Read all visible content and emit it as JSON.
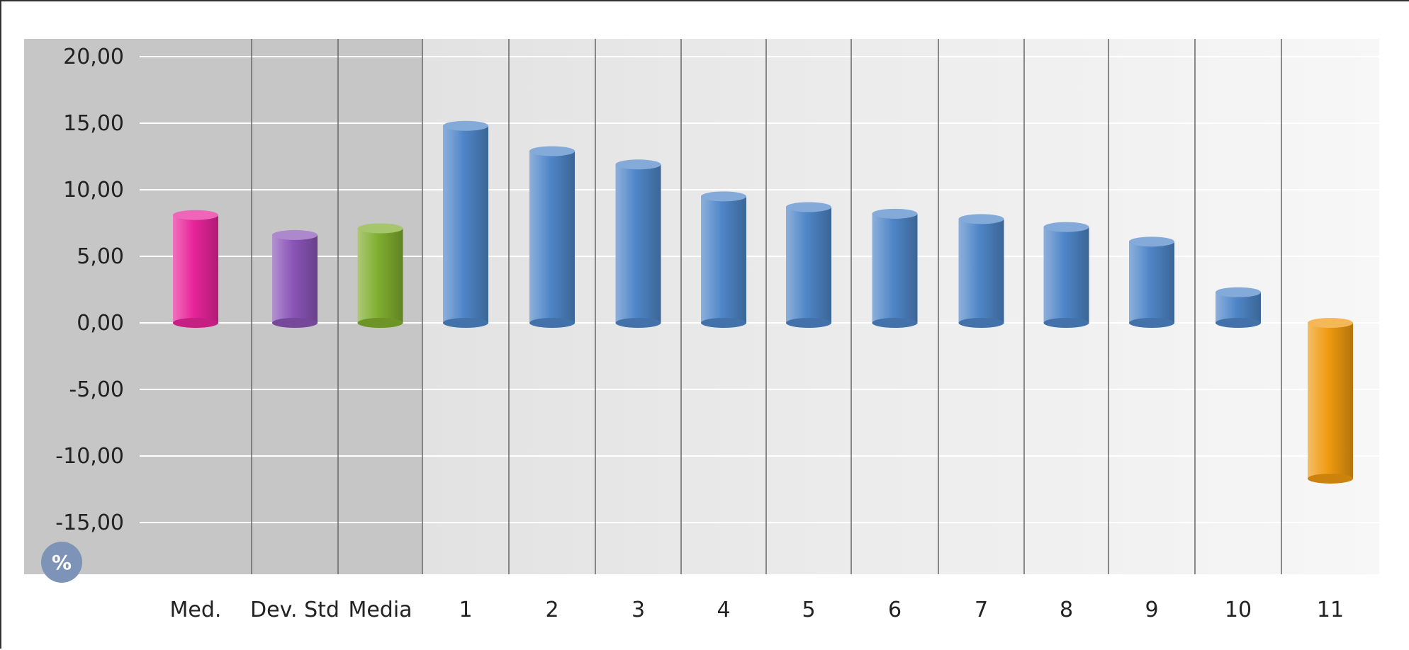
{
  "chart_data": {
    "type": "bar",
    "title": "",
    "xlabel": "",
    "ylabel": "",
    "unit_badge": "%",
    "ylim": [
      -18,
      21.5
    ],
    "y_ticks": [
      20,
      15,
      10,
      5,
      0,
      -5,
      -10,
      -15
    ],
    "y_tick_labels": [
      "20,00",
      "15,00",
      "10,00",
      "5,00",
      "0,00",
      "-5,00",
      "-10,00",
      "-15,00"
    ],
    "grid": true,
    "legend": "none",
    "categories": [
      "Med.",
      "Dev. Std",
      "Media",
      "1",
      "2",
      "3",
      "4",
      "5",
      "6",
      "7",
      "8",
      "9",
      "10",
      "11"
    ],
    "values": [
      8.1,
      6.6,
      7.1,
      14.8,
      12.9,
      11.9,
      9.5,
      8.7,
      8.2,
      7.8,
      7.2,
      6.1,
      2.3,
      -11.7
    ],
    "colors": [
      "#e8249a",
      "#8a55b8",
      "#7fae2e",
      "#4f86c8",
      "#4f86c8",
      "#4f86c8",
      "#4f86c8",
      "#4f86c8",
      "#4f86c8",
      "#4f86c8",
      "#4f86c8",
      "#4f86c8",
      "#4f86c8",
      "#f09a10"
    ],
    "highlighted_categories": [
      "Med.",
      "Dev. Std",
      "Media"
    ]
  }
}
